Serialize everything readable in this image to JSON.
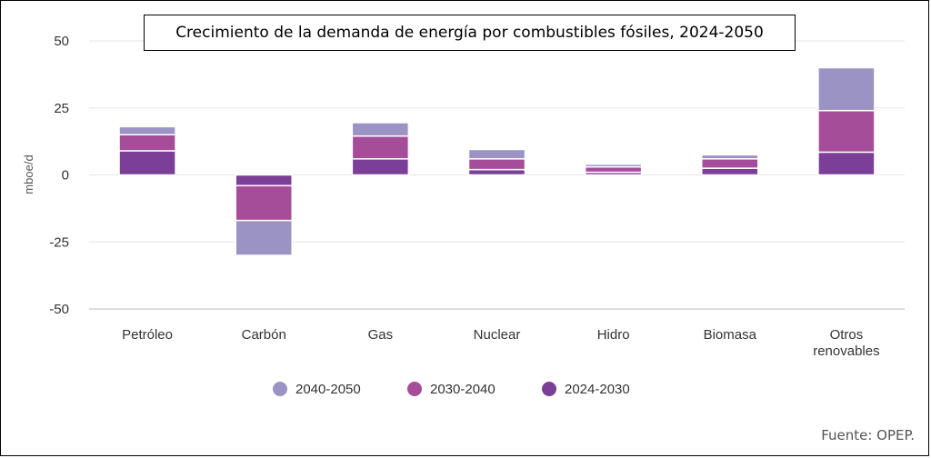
{
  "chart_data": {
    "type": "bar",
    "stacked": true,
    "title": "Crecimiento de la demanda de energía por combustibles fósiles, 2024-2050",
    "ylabel": "mboe/d",
    "xlabel": "",
    "ylim": [
      -50,
      50
    ],
    "yticks": [
      50,
      25,
      0,
      -25,
      -50
    ],
    "yticklabels": [
      "50",
      "25",
      "0",
      "-25",
      "-50"
    ],
    "categories": [
      "Petróleo",
      "Carbón",
      "Gas",
      "Nuclear",
      "Hidro",
      "Biomasa",
      "Otros renovables"
    ],
    "series": [
      {
        "name": "2024-2030",
        "color": "#7b3f98",
        "values": [
          9,
          -4,
          6,
          2,
          1,
          2.5,
          8.5
        ]
      },
      {
        "name": "2030-2040",
        "color": "#a64d9a",
        "values": [
          6,
          -13,
          8.5,
          4,
          2,
          3.5,
          15.5
        ]
      },
      {
        "name": "2040-2050",
        "color": "#9b93c4",
        "values": [
          3,
          -13,
          5,
          3.5,
          1,
          1.5,
          16
        ]
      }
    ],
    "legend_order": [
      2,
      1,
      0
    ],
    "legend_position": "bottom",
    "grid": true
  },
  "source": "Fuente: OPEP."
}
